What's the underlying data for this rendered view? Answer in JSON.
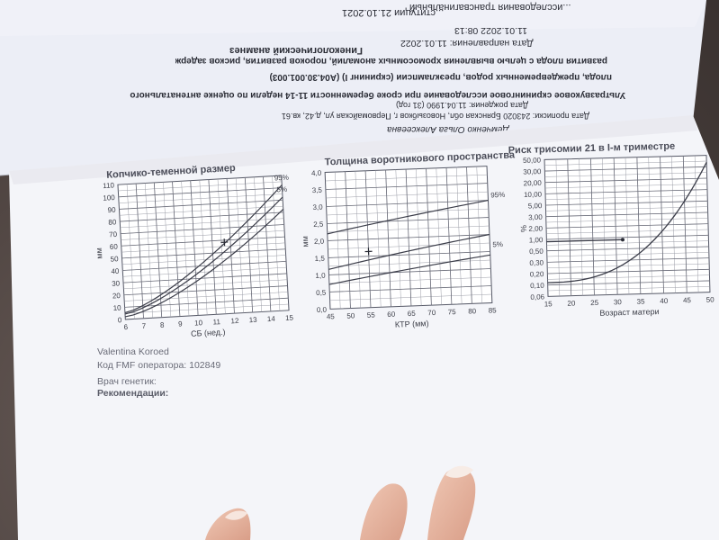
{
  "upside_text": {
    "line1": "...исследования трансвагинальный",
    "line1b": "...ституции 21.10.2021",
    "section": "Гинекологический анамнез",
    "date_sent_label": "Дата направления: 11.01.2022",
    "date_time": "11.01.2022 08:13",
    "line_a": "развития плода с целью выявления хромосомных аномалий, пороков развития, рисков задержки роста",
    "line_b": "плода, преждевременных родов, преэклампсии (скрининг I) (А04.30.001.003)",
    "line_c": "Ультразвуковое скрининговое исследование при сроке беременности 11-14 недели по оценке антенатального",
    "line_d": "Дата рождения: 11.04.1990 (31 год)",
    "line_e": "Дата прописки: 243020 Брянская обл, Новозыбков г, Первомайская ул, д.42, кв.61",
    "patient": "Демченко Ольга Алексеевна"
  },
  "charts": [
    {
      "title": "Копчико-теменной размер",
      "ylabel": "мм",
      "xlabel": "СБ (нед.)",
      "yticks": [
        "0",
        "10",
        "20",
        "30",
        "40",
        "50",
        "60",
        "70",
        "80",
        "90",
        "100",
        "110"
      ],
      "xticks": [
        "6",
        "7",
        "8",
        "9",
        "10",
        "11",
        "12",
        "13",
        "14",
        "15"
      ],
      "p95": "95%",
      "p5": "5%"
    },
    {
      "title": "Толщина воротникового пространства",
      "ylabel": "мм",
      "xlabel": "КТР (мм)",
      "yticks": [
        "0,0",
        "0,5",
        "1,0",
        "1,5",
        "2,0",
        "2,5",
        "3,0",
        "3,5",
        "4,0"
      ],
      "xticks": [
        "45",
        "50",
        "55",
        "60",
        "65",
        "70",
        "75",
        "80",
        "85"
      ],
      "p95": "95%",
      "p5": "5%"
    },
    {
      "title": "Риск трисомии 21 в I-м триместре",
      "ylabel": "%",
      "xlabel": "Возраст матери",
      "yticks": [
        "0,06",
        "0,10",
        "0,20",
        "0,30",
        "0,50",
        "1,00",
        "2,00",
        "3,00",
        "5,00",
        "10,00",
        "20,00",
        "30,00",
        "50,00"
      ],
      "xticks": [
        "15",
        "20",
        "25",
        "30",
        "35",
        "40",
        "45",
        "50"
      ]
    }
  ],
  "footer": {
    "name": "Valentina Koroed",
    "operator": "Код FMF оператора: 102849",
    "doctor": "Врач генетик:",
    "recommendations": "Рекомендации:"
  }
}
